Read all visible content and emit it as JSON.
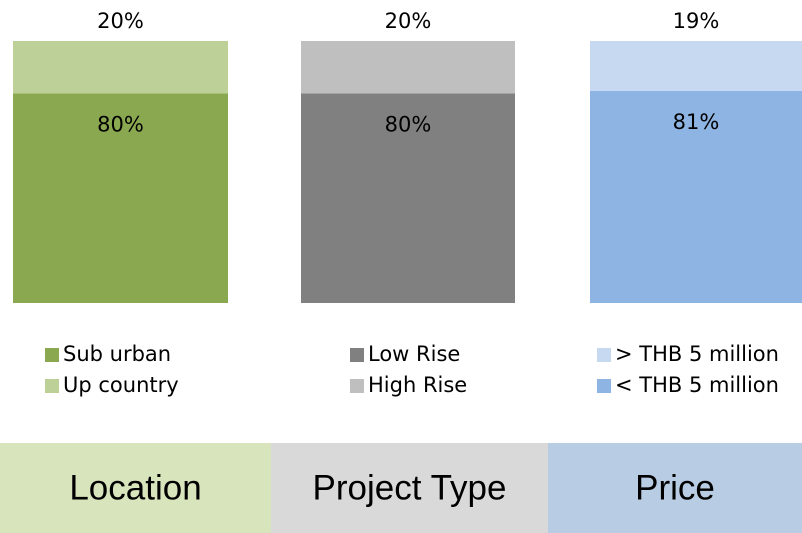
{
  "chart_data": [
    {
      "type": "stacked_bar",
      "category": "Location",
      "band_color": "#d8e4bc",
      "ylim": [
        0,
        100
      ],
      "legend_reversed": false,
      "series": [
        {
          "name": "Sub urban",
          "color": "#8aa84f",
          "values": [
            80
          ],
          "value_labels": [
            "80%"
          ]
        },
        {
          "name": "Up country",
          "color": "#bcd097",
          "values": [
            20
          ],
          "value_labels": [
            "20%"
          ]
        }
      ]
    },
    {
      "type": "stacked_bar",
      "category": "Project Type",
      "band_color": "#d9d9d9",
      "ylim": [
        0,
        100
      ],
      "legend_reversed": false,
      "series": [
        {
          "name": "Low Rise",
          "color": "#808080",
          "values": [
            80
          ],
          "value_labels": [
            "80%"
          ]
        },
        {
          "name": "High Rise",
          "color": "#bfbfbf",
          "values": [
            20
          ],
          "value_labels": [
            "20%"
          ]
        }
      ]
    },
    {
      "type": "stacked_bar",
      "category": "Price",
      "band_color": "#b8cce4",
      "ylim": [
        0,
        100
      ],
      "legend_reversed": true,
      "series": [
        {
          "name": "< THB 5 million",
          "color": "#8eb4e3",
          "values": [
            81
          ],
          "value_labels": [
            "81%"
          ]
        },
        {
          "name": "> THB 5 million",
          "color": "#c6d9f1",
          "values": [
            19
          ],
          "value_labels": [
            "19%"
          ]
        }
      ]
    }
  ]
}
